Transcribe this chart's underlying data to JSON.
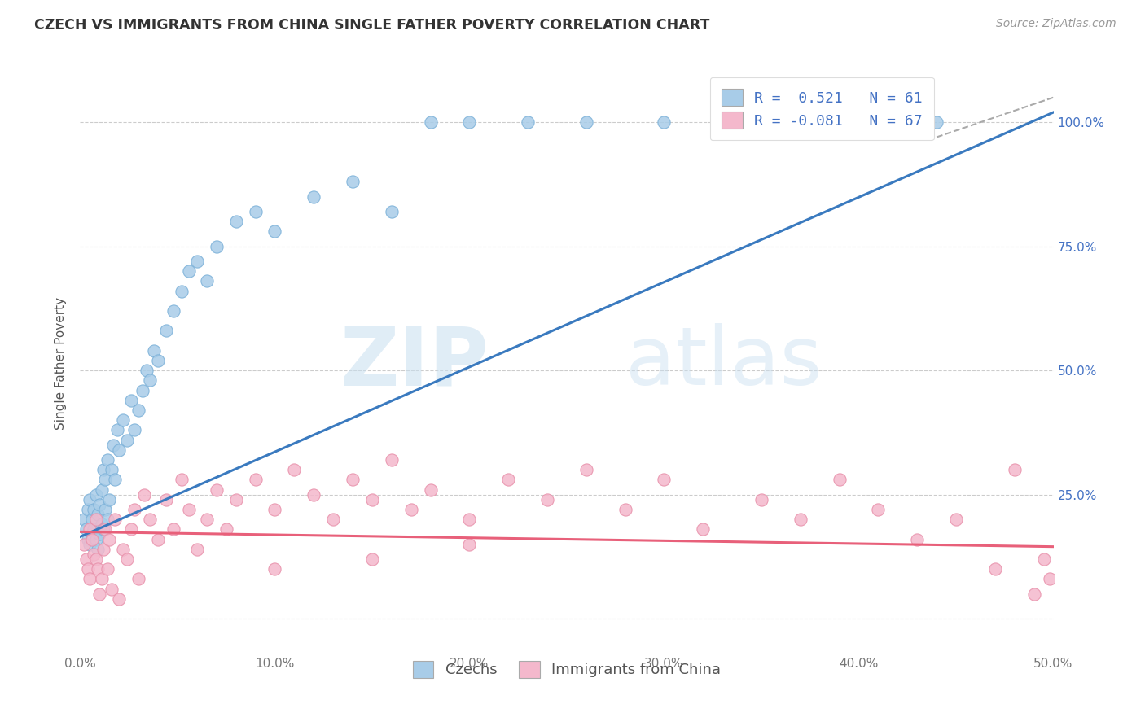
{
  "title": "CZECH VS IMMIGRANTS FROM CHINA SINGLE FATHER POVERTY CORRELATION CHART",
  "source": "Source: ZipAtlas.com",
  "ylabel": "Single Father Poverty",
  "legend_label1": "Czechs",
  "legend_label2": "Immigrants from China",
  "r1": 0.521,
  "n1": 61,
  "r2": -0.081,
  "n2": 67,
  "color1": "#a8cce8",
  "color2": "#f4b8cc",
  "line1_color": "#3a7abf",
  "line2_color": "#e8607a",
  "watermark_zip": "ZIP",
  "watermark_atlas": "atlas",
  "xlim": [
    0.0,
    0.5
  ],
  "ylim": [
    -0.07,
    1.1
  ],
  "yticks": [
    0.0,
    0.25,
    0.5,
    0.75,
    1.0
  ],
  "ytick_labels": [
    "",
    "25.0%",
    "50.0%",
    "75.0%",
    "100.0%"
  ],
  "czechs_x": [
    0.002,
    0.003,
    0.004,
    0.004,
    0.005,
    0.005,
    0.006,
    0.006,
    0.007,
    0.007,
    0.008,
    0.008,
    0.009,
    0.009,
    0.01,
    0.01,
    0.011,
    0.011,
    0.012,
    0.012,
    0.013,
    0.013,
    0.014,
    0.014,
    0.015,
    0.016,
    0.017,
    0.018,
    0.019,
    0.02,
    0.022,
    0.024,
    0.026,
    0.028,
    0.03,
    0.032,
    0.034,
    0.036,
    0.038,
    0.04,
    0.044,
    0.048,
    0.052,
    0.056,
    0.06,
    0.065,
    0.07,
    0.08,
    0.09,
    0.1,
    0.12,
    0.14,
    0.16,
    0.18,
    0.2,
    0.23,
    0.26,
    0.3,
    0.34,
    0.39,
    0.44
  ],
  "czechs_y": [
    0.2,
    0.18,
    0.16,
    0.22,
    0.15,
    0.24,
    0.17,
    0.2,
    0.18,
    0.22,
    0.16,
    0.25,
    0.14,
    0.21,
    0.17,
    0.23,
    0.19,
    0.26,
    0.18,
    0.3,
    0.22,
    0.28,
    0.2,
    0.32,
    0.24,
    0.3,
    0.35,
    0.28,
    0.38,
    0.34,
    0.4,
    0.36,
    0.44,
    0.38,
    0.42,
    0.46,
    0.5,
    0.48,
    0.54,
    0.52,
    0.58,
    0.62,
    0.66,
    0.7,
    0.72,
    0.68,
    0.75,
    0.8,
    0.82,
    0.78,
    0.85,
    0.88,
    0.82,
    1.0,
    1.0,
    1.0,
    1.0,
    1.0,
    1.0,
    1.0,
    1.0
  ],
  "china_x": [
    0.002,
    0.003,
    0.004,
    0.005,
    0.005,
    0.006,
    0.007,
    0.008,
    0.008,
    0.009,
    0.01,
    0.011,
    0.012,
    0.013,
    0.014,
    0.015,
    0.016,
    0.018,
    0.02,
    0.022,
    0.024,
    0.026,
    0.028,
    0.03,
    0.033,
    0.036,
    0.04,
    0.044,
    0.048,
    0.052,
    0.056,
    0.06,
    0.065,
    0.07,
    0.075,
    0.08,
    0.09,
    0.1,
    0.11,
    0.12,
    0.13,
    0.14,
    0.15,
    0.16,
    0.17,
    0.18,
    0.2,
    0.22,
    0.24,
    0.26,
    0.28,
    0.3,
    0.32,
    0.35,
    0.37,
    0.39,
    0.41,
    0.43,
    0.45,
    0.47,
    0.48,
    0.49,
    0.495,
    0.498,
    0.2,
    0.15,
    0.1
  ],
  "china_y": [
    0.15,
    0.12,
    0.1,
    0.08,
    0.18,
    0.16,
    0.13,
    0.12,
    0.2,
    0.1,
    0.05,
    0.08,
    0.14,
    0.18,
    0.1,
    0.16,
    0.06,
    0.2,
    0.04,
    0.14,
    0.12,
    0.18,
    0.22,
    0.08,
    0.25,
    0.2,
    0.16,
    0.24,
    0.18,
    0.28,
    0.22,
    0.14,
    0.2,
    0.26,
    0.18,
    0.24,
    0.28,
    0.22,
    0.3,
    0.25,
    0.2,
    0.28,
    0.24,
    0.32,
    0.22,
    0.26,
    0.2,
    0.28,
    0.24,
    0.3,
    0.22,
    0.28,
    0.18,
    0.24,
    0.2,
    0.28,
    0.22,
    0.16,
    0.2,
    0.1,
    0.3,
    0.05,
    0.12,
    0.08,
    0.15,
    0.12,
    0.1
  ],
  "line1_x0": 0.0,
  "line1_y0": 0.165,
  "line1_x1": 0.5,
  "line1_y1": 1.02,
  "line2_x0": 0.0,
  "line2_y0": 0.175,
  "line2_x1": 0.5,
  "line2_y1": 0.145
}
